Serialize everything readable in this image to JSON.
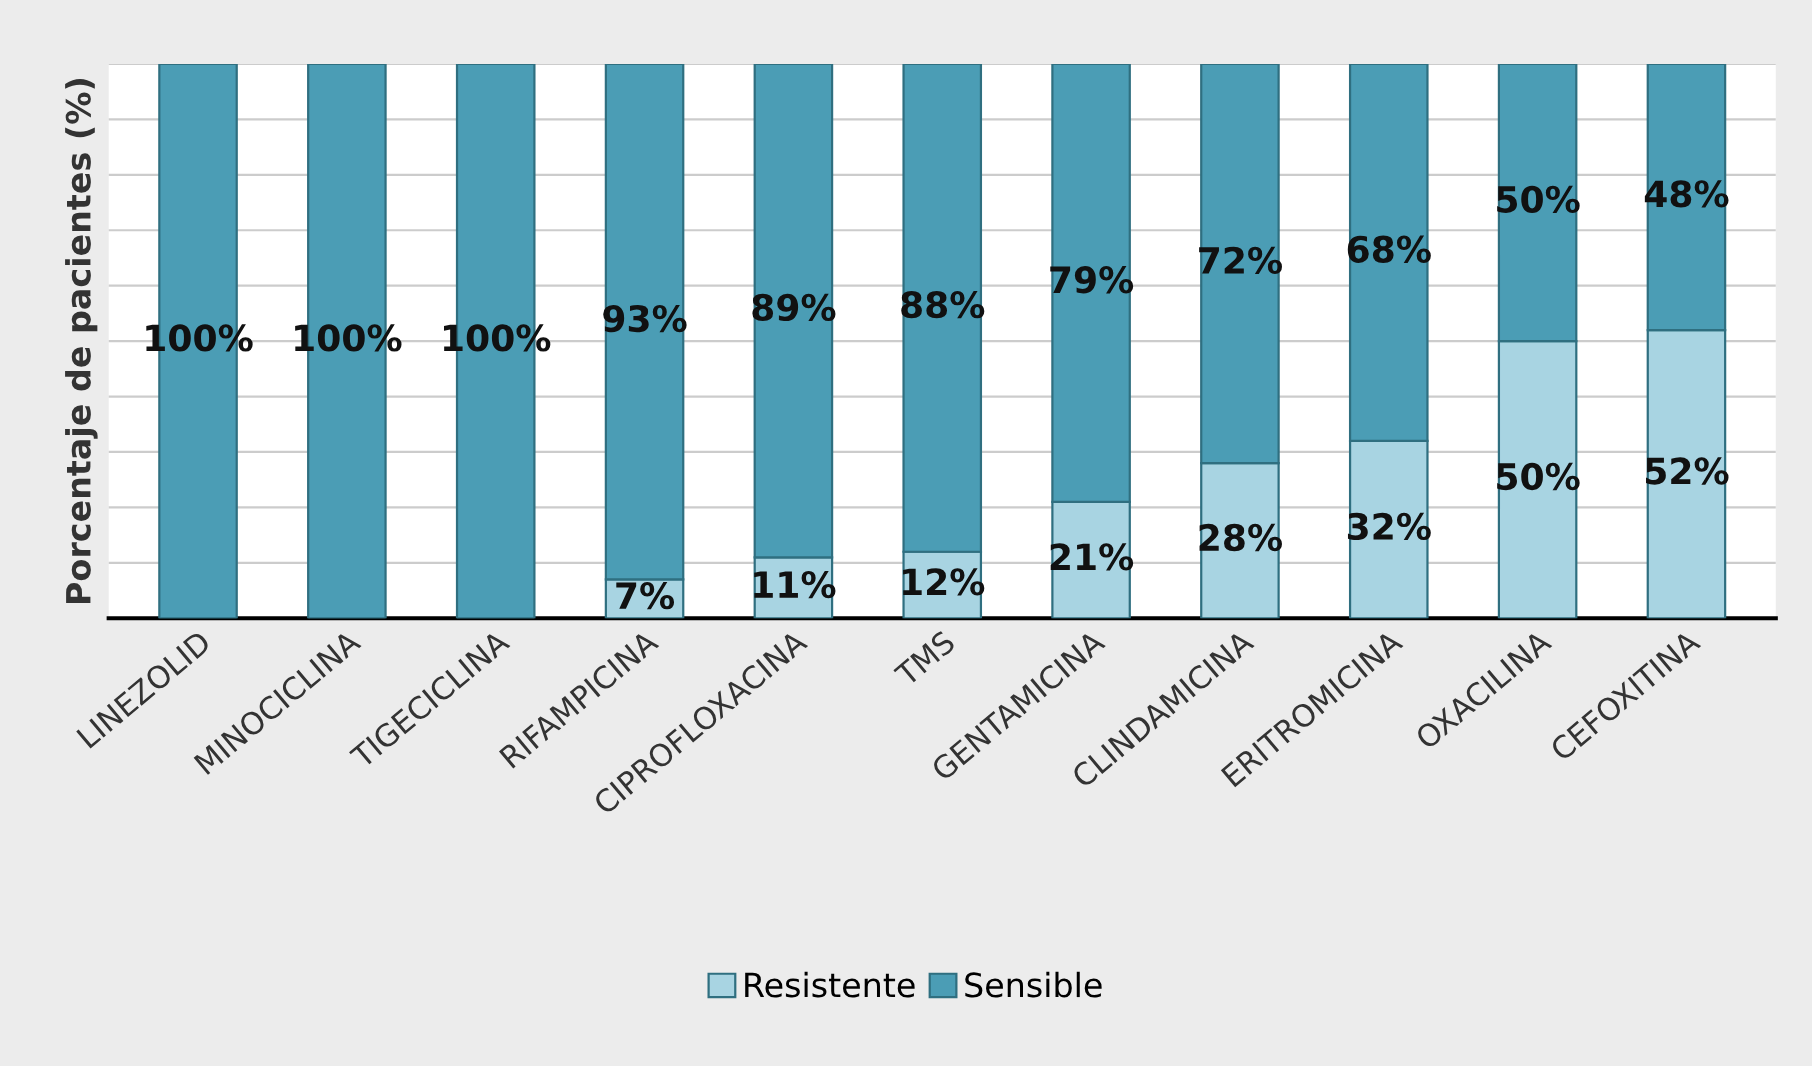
{
  "chart_data": {
    "type": "bar",
    "stacked": true,
    "ylabel": "Porcentaje de pacientes (%)",
    "categories": [
      "LINEZOLID",
      "MINOCICLINA",
      "TIGECICLINA",
      "RIFAMPICINA",
      "CIPROFLOXACINA",
      "TMS",
      "GENTAMICINA",
      "CLINDAMICINA",
      "ERITROMICINA",
      "OXACILINA",
      "CEFOXITINA"
    ],
    "series": [
      {
        "name": "Resistente",
        "color": "#a8d4e2",
        "values": [
          0,
          0,
          0,
          7,
          11,
          12,
          21,
          28,
          32,
          50,
          52
        ],
        "value_labels": [
          null,
          null,
          null,
          "7%",
          "11%",
          "12%",
          "21%",
          "28%",
          "32%",
          "50%",
          "52%"
        ]
      },
      {
        "name": "Sensible",
        "color": "#4b9db5",
        "values": [
          100,
          100,
          100,
          93,
          89,
          88,
          79,
          72,
          68,
          50,
          48
        ],
        "value_labels": [
          "100%",
          "100%",
          "100%",
          "93%",
          "89%",
          "88%",
          "79%",
          "72%",
          "68%",
          "50%",
          "48%"
        ]
      }
    ],
    "ylim": [
      0,
      100
    ],
    "yticks": [
      {
        "value": 0,
        "label": null
      },
      {
        "value": 10,
        "label": null
      },
      {
        "value": 20,
        "label": null
      },
      {
        "value": 30,
        "label": null
      },
      {
        "value": 40,
        "label": null
      },
      {
        "value": 50,
        "label": null
      },
      {
        "value": 60,
        "label": null
      },
      {
        "value": 70,
        "label": null
      },
      {
        "value": 80,
        "label": null
      },
      {
        "value": 90,
        "label": null
      },
      {
        "value": 100,
        "label": null
      }
    ],
    "tick_labels": "x",
    "grid": "y",
    "legend": "bottom"
  }
}
